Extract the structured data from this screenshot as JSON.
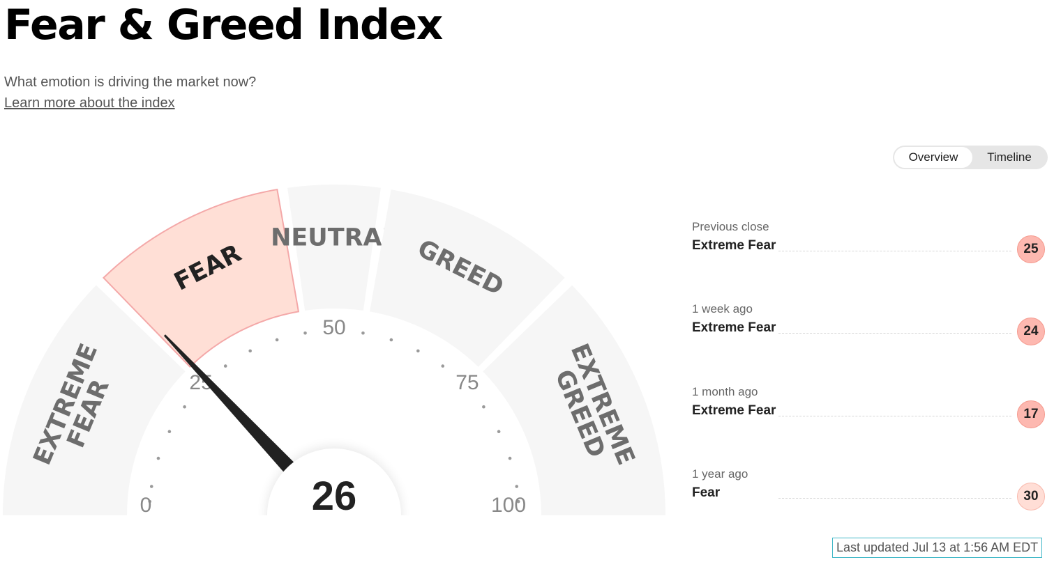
{
  "header": {
    "title": "Fear & Greed Index",
    "subtitle": "What emotion is driving the market now?",
    "learn_more": "Learn more about the index"
  },
  "view_toggle": {
    "tabs": [
      {
        "label": "Overview",
        "active": true
      },
      {
        "label": "Timeline",
        "active": false
      }
    ]
  },
  "gauge": {
    "value": 26,
    "min": 0,
    "max": 100,
    "tick_labels": [
      "0",
      "25",
      "50",
      "75",
      "100"
    ],
    "segments": [
      {
        "lines": [
          "EXTREME",
          "FEAR"
        ],
        "from": 0,
        "to": 25,
        "active": false
      },
      {
        "lines": [
          "FEAR"
        ],
        "from": 25,
        "to": 45,
        "active": true
      },
      {
        "lines": [
          "NEUTRAL"
        ],
        "from": 45,
        "to": 55,
        "active": false
      },
      {
        "lines": [
          "GREED"
        ],
        "from": 55,
        "to": 75,
        "active": false
      },
      {
        "lines": [
          "EXTREME",
          "GREED"
        ],
        "from": 75,
        "to": 100,
        "active": false
      }
    ],
    "colors": {
      "segment_bg": "#f6f6f6",
      "active_fill": "#ffdfd6",
      "active_stroke": "#f4a8a8",
      "needle": "#222222",
      "dot": "#9a9a9a"
    }
  },
  "history": [
    {
      "label": "Previous close",
      "rating": "Extreme Fear",
      "value": "25",
      "color": "#fdb8b0",
      "border": "#f59a8e"
    },
    {
      "label": "1 week ago",
      "rating": "Extreme Fear",
      "value": "24",
      "color": "#fdb8b0",
      "border": "#f59a8e"
    },
    {
      "label": "1 month ago",
      "rating": "Extreme Fear",
      "value": "17",
      "color": "#fdb8b0",
      "border": "#f59a8e"
    },
    {
      "label": "1 year ago",
      "rating": "Fear",
      "value": "30",
      "color": "#ffded6",
      "border": "#f8b8ac"
    }
  ],
  "last_updated": "Last updated Jul 13 at 1:56 AM EDT"
}
